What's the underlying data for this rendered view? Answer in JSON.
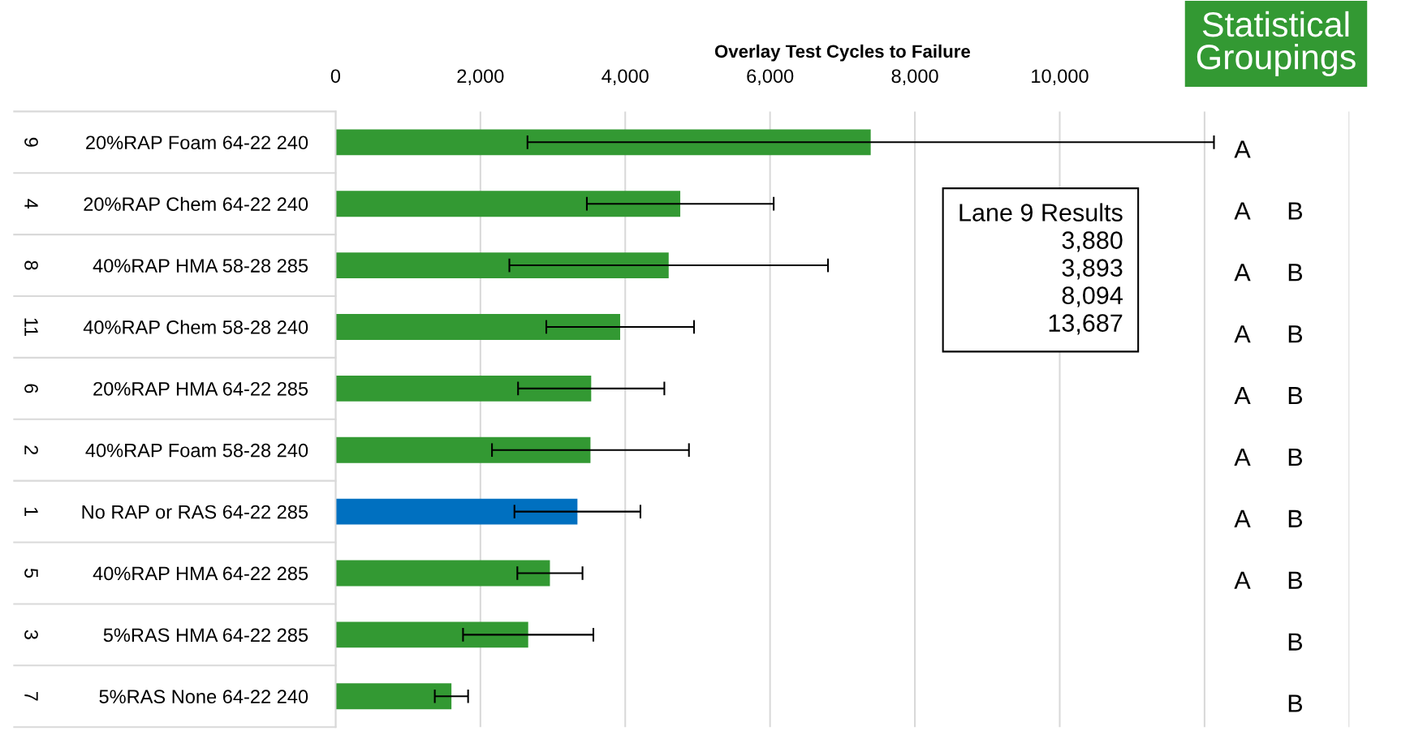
{
  "chart_data": {
    "type": "bar",
    "orientation": "horizontal",
    "xlabel": "Overlay Test Cycles to Failure",
    "categories": [
      "20%RAP Foam 64-22 240",
      "20%RAP Chem 64-22 240",
      "40%RAP HMA 58-28 285",
      "40%RAP Chem 58-28 240",
      "20%RAP HMA 64-22 285",
      "40%RAP Foam 58-28 240",
      "No RAP or RAS 64-22 285",
      "40%RAP HMA 64-22 285",
      "5%RAS HMA 64-22 285",
      "5%RAS None 64-22 240"
    ],
    "values": [
      7390,
      4760,
      4600,
      3930,
      3530,
      3520,
      3340,
      2960,
      2660,
      1600
    ],
    "errors": [
      4740,
      1290,
      2200,
      1020,
      1010,
      1360,
      870,
      450,
      900,
      230
    ],
    "colors": [
      "#339933",
      "#339933",
      "#339933",
      "#339933",
      "#339933",
      "#339933",
      "#0070c0",
      "#339933",
      "#339933",
      "#339933"
    ],
    "xlim": [
      0,
      14000
    ],
    "xticks": [
      0,
      {
        "value": 2000,
        "label": "2,000"
      },
      {
        "value": 4000,
        "label": "4,000"
      },
      {
        "value": 6000,
        "label": "6,000"
      },
      {
        "value": 8000,
        "label": "8,000"
      },
      {
        "value": 10000,
        "label": "10,000"
      },
      {
        "value": 12000,
        "label": null
      },
      {
        "value": 14000,
        "label": null
      }
    ],
    "grid": "x",
    "legend": false,
    "annotations": [
      "Lane 9 Results\n3,880\n3,893\n8,094\n13,687",
      "Statistical\nGroupings",
      "9",
      "4",
      "8",
      "11",
      "6",
      "2",
      "1",
      "5",
      "3",
      "7",
      "A",
      "A",
      "A",
      "A",
      "A",
      "A",
      "A",
      "A",
      "B",
      "B",
      "B",
      "B",
      "B",
      "B",
      "B",
      "B",
      "B"
    ]
  }
}
